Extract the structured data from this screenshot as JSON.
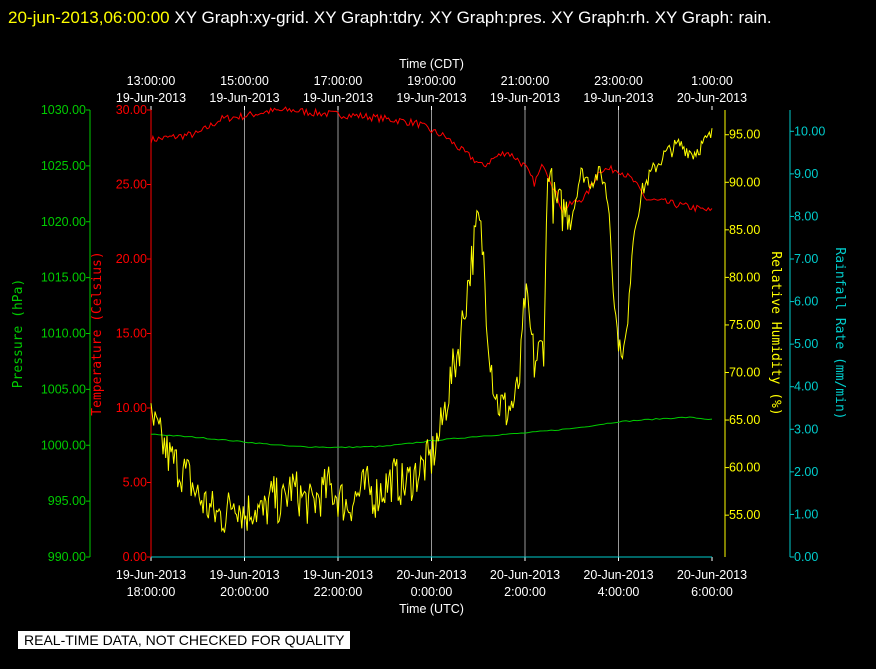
{
  "header": {
    "date": "20-jun-2013,06:00:00",
    "graphs": "XY Graph:xy-grid.  XY Graph:tdry.  XY Graph:pres.  XY Graph:rh.  XY Graph: rain."
  },
  "disclaimer": "REAL-TIME DATA, NOT CHECKED FOR QUALITY",
  "colors": {
    "pressure": "#00cc00",
    "temperature": "#ff0000",
    "humidity": "#ffff00",
    "rain": "#00cccc",
    "grid": "#ffffff"
  },
  "chart_data": {
    "type": "line",
    "x_top_label": "Time (CDT)",
    "x_bottom_label": "Time (UTC)",
    "x_range_utc_hours": [
      18,
      30
    ],
    "x_ticks_bottom": [
      {
        "t": 18,
        "d": "19-Jun-2013",
        "h": "18:00:00"
      },
      {
        "t": 20,
        "d": "19-Jun-2013",
        "h": "20:00:00"
      },
      {
        "t": 22,
        "d": "19-Jun-2013",
        "h": "22:00:00"
      },
      {
        "t": 24,
        "d": "20-Jun-2013",
        "h": "0:00:00"
      },
      {
        "t": 26,
        "d": "20-Jun-2013",
        "h": "2:00:00"
      },
      {
        "t": 28,
        "d": "20-Jun-2013",
        "h": "4:00:00"
      },
      {
        "t": 30,
        "d": "20-Jun-2013",
        "h": "6:00:00"
      }
    ],
    "x_ticks_top": [
      {
        "t": 18,
        "h": "13:00:00",
        "d": "19-Jun-2013"
      },
      {
        "t": 20,
        "h": "15:00:00",
        "d": "19-Jun-2013"
      },
      {
        "t": 22,
        "h": "17:00:00",
        "d": "19-Jun-2013"
      },
      {
        "t": 24,
        "h": "19:00:00",
        "d": "19-Jun-2013"
      },
      {
        "t": 26,
        "h": "21:00:00",
        "d": "19-Jun-2013"
      },
      {
        "t": 28,
        "h": "23:00:00",
        "d": "19-Jun-2013"
      },
      {
        "t": 30,
        "h": "1:00:00",
        "d": "20-Jun-2013"
      }
    ],
    "axes": {
      "pressure": {
        "label": "Pressure (hPa)",
        "range": [
          990,
          1030
        ],
        "ticks": [
          "990.00",
          "995.00",
          "1000.00",
          "1005.00",
          "1010.00",
          "1015.00",
          "1020.00",
          "1025.00",
          "1030.00"
        ]
      },
      "temperature": {
        "label": "Temperature (Celsius)",
        "range": [
          0,
          30
        ],
        "ticks": [
          "0.00",
          "5.00",
          "10.00",
          "15.00",
          "20.00",
          "25.00",
          "30.00"
        ]
      },
      "humidity": {
        "label": "Relative Humidity (%)",
        "range": [
          50.6,
          97.6
        ],
        "ticks": [
          "55.00",
          "60.00",
          "65.00",
          "70.00",
          "75.00",
          "80.00",
          "85.00",
          "90.00",
          "95.00"
        ]
      },
      "rain": {
        "label": "Rainfall Rate (mm/min)",
        "range": [
          0,
          10.5
        ],
        "ticks": [
          "0.00",
          "1.00",
          "2.00",
          "3.00",
          "4.00",
          "5.00",
          "6.00",
          "7.00",
          "8.00",
          "9.00",
          "10.00"
        ]
      }
    },
    "series": [
      {
        "name": "Temperature (Celsius)",
        "axis": "temperature",
        "x": [
          18,
          18.5,
          19,
          19.5,
          20,
          20.5,
          21,
          21.5,
          22,
          22.5,
          23,
          23.3,
          23.7,
          24,
          24.3,
          24.6,
          24.9,
          25.1,
          25.3,
          25.6,
          25.8,
          26,
          26.2,
          26.4,
          26.6,
          26.8,
          27,
          27.3,
          27.6,
          28,
          28.3,
          28.6,
          29,
          29.5,
          30
        ],
        "values": [
          28.0,
          28.2,
          28.4,
          29.4,
          29.6,
          29.9,
          30.0,
          29.8,
          29.7,
          29.6,
          29.4,
          29.3,
          29.1,
          28.6,
          28.2,
          27.4,
          26.7,
          26.2,
          26.7,
          27.2,
          26.8,
          26.2,
          25.1,
          26.4,
          24.9,
          23.3,
          23.7,
          24.2,
          26.0,
          26.0,
          25.3,
          24.0,
          23.8,
          23.5,
          23.2
        ]
      },
      {
        "name": "Pressure (hPa)",
        "axis": "pressure",
        "x": [
          18,
          19,
          20,
          21,
          22,
          23,
          24,
          25,
          26,
          27,
          28,
          29,
          29.5,
          30
        ],
        "values": [
          1001.0,
          1000.7,
          1000.3,
          999.9,
          999.8,
          999.9,
          1000.4,
          1000.8,
          1001.1,
          1001.5,
          1002.1,
          1002.4,
          1002.5,
          1002.3
        ]
      },
      {
        "name": "Relative Humidity (%)",
        "axis": "humidity",
        "x": [
          18,
          18.2,
          18.4,
          18.6,
          18.8,
          19,
          19.2,
          19.4,
          19.6,
          19.8,
          20,
          20.2,
          20.4,
          20.6,
          20.8,
          21,
          21.2,
          21.4,
          21.6,
          21.8,
          22,
          22.2,
          22.4,
          22.6,
          22.8,
          23,
          23.2,
          23.4,
          23.6,
          23.8,
          24,
          24.2,
          24.4,
          24.6,
          24.8,
          25,
          25.1,
          25.2,
          25.3,
          25.4,
          25.6,
          25.8,
          25.9,
          26,
          26.1,
          26.2,
          26.3,
          26.4,
          26.5,
          26.6,
          26.8,
          27,
          27.2,
          27.4,
          27.6,
          27.7,
          27.8,
          27.9,
          28,
          28.1,
          28.2,
          28.3,
          28.5,
          28.7,
          29,
          29.3,
          29.6,
          29.8,
          30
        ],
        "values": [
          65,
          63,
          61,
          60,
          59,
          57,
          56,
          55,
          55,
          57,
          55,
          56,
          55,
          57,
          56,
          58,
          57,
          56,
          57,
          58,
          57,
          56,
          57,
          58,
          57,
          58,
          59,
          58,
          59,
          60,
          61,
          64,
          69,
          73,
          80,
          86,
          83,
          75,
          70,
          67,
          66,
          67,
          70,
          78,
          75,
          71,
          72,
          73,
          93,
          88,
          87,
          87,
          91,
          90,
          91,
          90,
          87,
          78,
          73,
          72,
          75,
          84,
          89,
          91,
          93,
          94,
          93,
          94,
          95
        ]
      },
      {
        "name": "Rainfall Rate (mm/min)",
        "axis": "rain",
        "x": [
          18,
          30
        ],
        "values": [
          0,
          0
        ]
      }
    ]
  }
}
